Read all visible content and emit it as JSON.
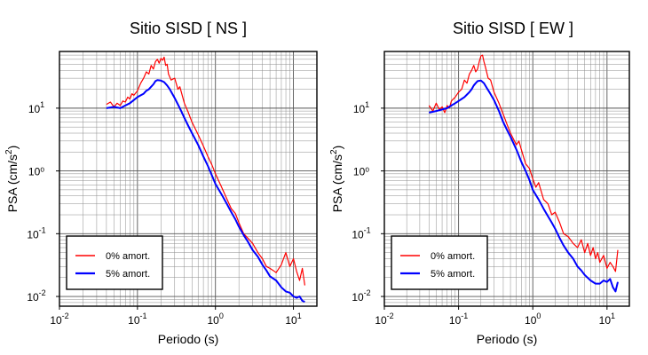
{
  "chart_data": [
    {
      "type": "line",
      "title": "Sitio SISD [ NS ]",
      "xlabel": "Periodo (s)",
      "ylabel_text": "PSA (cm/s",
      "ylabel_sup": "2",
      "ylabel_close": ")",
      "x_scale": "log",
      "y_scale": "log",
      "xlim": [
        0.01,
        20
      ],
      "ylim": [
        0.007,
        80
      ],
      "grid": true,
      "x_ticks": [
        {
          "value": 0.01,
          "base": "10",
          "exp": "-2"
        },
        {
          "value": 0.1,
          "base": "10",
          "exp": "-1"
        },
        {
          "value": 1,
          "base": "10",
          "exp": "0"
        },
        {
          "value": 10,
          "base": "10",
          "exp": "1"
        }
      ],
      "y_ticks": [
        {
          "value": 0.01,
          "base": "10",
          "exp": "-2"
        },
        {
          "value": 0.1,
          "base": "10",
          "exp": "-1"
        },
        {
          "value": 1,
          "base": "",
          "exp": "",
          "plain": "10⁰"
        },
        {
          "value": 10,
          "base": "10",
          "exp": "1"
        }
      ],
      "legend_position": "bottom-left",
      "series": [
        {
          "name": "0% amort.",
          "color": "#ff0000",
          "x": [
            0.04,
            0.045,
            0.05,
            0.055,
            0.06,
            0.065,
            0.07,
            0.075,
            0.08,
            0.085,
            0.09,
            0.1,
            0.11,
            0.12,
            0.13,
            0.14,
            0.15,
            0.16,
            0.17,
            0.18,
            0.19,
            0.2,
            0.21,
            0.22,
            0.23,
            0.24,
            0.25,
            0.27,
            0.3,
            0.33,
            0.35,
            0.4,
            0.45,
            0.5,
            0.6,
            0.7,
            0.8,
            0.9,
            1.0,
            1.2,
            1.4,
            1.6,
            1.8,
            2.0,
            2.3,
            2.6,
            3.0,
            3.5,
            4.0,
            4.5,
            5.0,
            5.5,
            6.0,
            7.0,
            8.0,
            9.0,
            10.0,
            11.0,
            12.0,
            13.0,
            14.0
          ],
          "y": [
            11.5,
            12.5,
            10.5,
            12,
            11,
            13,
            12.5,
            15,
            14,
            17,
            16,
            19,
            25,
            30,
            38,
            35,
            48,
            42,
            55,
            60,
            52,
            62,
            58,
            65,
            48,
            50,
            35,
            28,
            30,
            20,
            22,
            12,
            8.5,
            6.0,
            3.8,
            2.5,
            1.7,
            1.25,
            0.9,
            0.55,
            0.36,
            0.25,
            0.21,
            0.15,
            0.1,
            0.085,
            0.07,
            0.05,
            0.04,
            0.03,
            0.028,
            0.026,
            0.024,
            0.032,
            0.05,
            0.03,
            0.04,
            0.025,
            0.018,
            0.028,
            0.015
          ]
        },
        {
          "name": "5% amort.",
          "color": "#0000ff",
          "x": [
            0.04,
            0.05,
            0.06,
            0.07,
            0.08,
            0.09,
            0.1,
            0.11,
            0.12,
            0.13,
            0.14,
            0.15,
            0.16,
            0.17,
            0.18,
            0.2,
            0.22,
            0.24,
            0.26,
            0.3,
            0.35,
            0.4,
            0.45,
            0.5,
            0.6,
            0.7,
            0.8,
            0.9,
            1.0,
            1.2,
            1.4,
            1.6,
            1.8,
            2.0,
            2.3,
            2.6,
            3.0,
            3.5,
            4.0,
            4.5,
            5.0,
            6.0,
            7.0,
            8.0,
            9.0,
            10.0,
            11.0,
            12.0,
            13.0,
            14.0
          ],
          "y": [
            10.0,
            10.5,
            10.0,
            11.0,
            12.0,
            13.5,
            15.0,
            16.0,
            17.0,
            19.0,
            20.0,
            22.0,
            24.0,
            27.0,
            28.0,
            27.5,
            26.0,
            23.0,
            20.0,
            14.5,
            10.0,
            7.0,
            5.2,
            4.0,
            2.6,
            1.7,
            1.2,
            0.85,
            0.62,
            0.42,
            0.3,
            0.22,
            0.17,
            0.13,
            0.095,
            0.075,
            0.055,
            0.043,
            0.032,
            0.026,
            0.021,
            0.018,
            0.014,
            0.012,
            0.0115,
            0.01,
            0.0095,
            0.01,
            0.0085,
            0.0082
          ]
        }
      ]
    },
    {
      "type": "line",
      "title": "Sitio SISD [ EW ]",
      "xlabel": "Periodo (s)",
      "ylabel_text": "PSA (cm/s",
      "ylabel_sup": "2",
      "ylabel_close": ")",
      "x_scale": "log",
      "y_scale": "log",
      "xlim": [
        0.01,
        20
      ],
      "ylim": [
        0.007,
        80
      ],
      "grid": true,
      "x_ticks": [
        {
          "value": 0.01,
          "base": "10",
          "exp": "-2"
        },
        {
          "value": 0.1,
          "base": "10",
          "exp": "-1"
        },
        {
          "value": 1,
          "base": "10",
          "exp": "0"
        },
        {
          "value": 10,
          "base": "10",
          "exp": "1"
        }
      ],
      "y_ticks": [
        {
          "value": 0.01,
          "base": "10",
          "exp": "-2"
        },
        {
          "value": 0.1,
          "base": "10",
          "exp": "-1"
        },
        {
          "value": 1,
          "base": "",
          "exp": "",
          "plain": "10⁰"
        },
        {
          "value": 10,
          "base": "10",
          "exp": "1"
        }
      ],
      "legend_position": "bottom-left",
      "series": [
        {
          "name": "0% amort.",
          "color": "#ff0000",
          "x": [
            0.04,
            0.045,
            0.05,
            0.055,
            0.06,
            0.065,
            0.07,
            0.075,
            0.08,
            0.09,
            0.1,
            0.11,
            0.12,
            0.13,
            0.14,
            0.15,
            0.16,
            0.17,
            0.18,
            0.19,
            0.2,
            0.21,
            0.22,
            0.23,
            0.25,
            0.27,
            0.3,
            0.35,
            0.4,
            0.45,
            0.5,
            0.6,
            0.65,
            0.7,
            0.8,
            0.9,
            1.0,
            1.1,
            1.2,
            1.4,
            1.6,
            1.8,
            2.0,
            2.3,
            2.6,
            3.0,
            3.5,
            4.0,
            4.5,
            5.0,
            5.5,
            6.0,
            6.5,
            7.0,
            7.5,
            8.0,
            9.0,
            10.0,
            11.0,
            12.0,
            13.0,
            14.0
          ],
          "y": [
            11.0,
            9.0,
            12.0,
            9.5,
            10.5,
            8.5,
            11.0,
            10.0,
            13.0,
            15.0,
            18.0,
            20.0,
            28.0,
            25.0,
            35.0,
            40.0,
            48.0,
            38.0,
            42.0,
            55.0,
            68.0,
            70.0,
            55.0,
            45.0,
            30.0,
            28.0,
            18.0,
            12.0,
            8.0,
            5.5,
            4.0,
            2.6,
            3.0,
            2.2,
            1.3,
            1.1,
            0.75,
            0.55,
            0.65,
            0.35,
            0.3,
            0.2,
            0.22,
            0.15,
            0.1,
            0.09,
            0.07,
            0.06,
            0.08,
            0.05,
            0.07,
            0.045,
            0.06,
            0.04,
            0.05,
            0.035,
            0.045,
            0.028,
            0.035,
            0.03,
            0.025,
            0.055
          ]
        },
        {
          "name": "5% amort.",
          "color": "#0000ff",
          "x": [
            0.04,
            0.05,
            0.06,
            0.07,
            0.08,
            0.09,
            0.1,
            0.11,
            0.12,
            0.13,
            0.14,
            0.15,
            0.16,
            0.17,
            0.18,
            0.2,
            0.22,
            0.24,
            0.26,
            0.3,
            0.35,
            0.4,
            0.45,
            0.5,
            0.6,
            0.7,
            0.8,
            0.9,
            1.0,
            1.2,
            1.4,
            1.6,
            1.8,
            2.0,
            2.3,
            2.6,
            3.0,
            3.5,
            4.0,
            4.5,
            5.0,
            6.0,
            7.0,
            8.0,
            9.0,
            10.0,
            11.0,
            12.0,
            13.0,
            14.0
          ],
          "y": [
            8.5,
            9.0,
            9.5,
            10.0,
            11.0,
            12.0,
            13.0,
            14.0,
            15.0,
            16.5,
            18.0,
            20.0,
            23.0,
            25.0,
            27.0,
            27.5,
            25.0,
            21.0,
            18.0,
            13.5,
            9.0,
            6.0,
            4.5,
            3.5,
            2.2,
            1.4,
            1.0,
            0.72,
            0.5,
            0.35,
            0.25,
            0.19,
            0.15,
            0.12,
            0.085,
            0.065,
            0.05,
            0.04,
            0.03,
            0.026,
            0.022,
            0.018,
            0.016,
            0.016,
            0.018,
            0.017,
            0.019,
            0.014,
            0.012,
            0.017
          ]
        }
      ]
    }
  ]
}
